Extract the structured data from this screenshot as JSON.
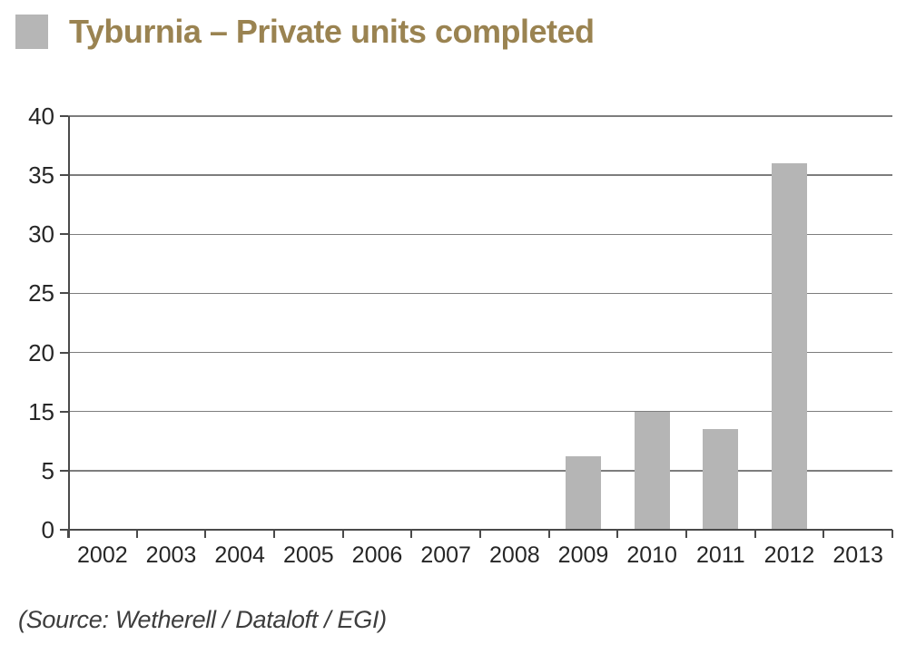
{
  "title": {
    "text": "Tyburnia – Private units completed",
    "color": "#9a8351"
  },
  "legend": {
    "swatch_color": "#b6b6b6",
    "position": "top-left"
  },
  "source_note": "(Source: Wetherell / Dataloft / EGI)",
  "chart_data": {
    "type": "bar",
    "title": "Tyburnia – Private units completed",
    "categories": [
      "2002",
      "2003",
      "2004",
      "2005",
      "2006",
      "2007",
      "2008",
      "2009",
      "2010",
      "2011",
      "2012",
      "2013"
    ],
    "values": [
      0,
      0,
      0,
      0,
      0,
      0,
      0,
      7.5,
      15,
      12,
      36,
      0
    ],
    "xlabel": "",
    "ylabel": "",
    "ylim": [
      0,
      40
    ],
    "yticks_bottom_to_top": [
      0,
      5,
      15,
      20,
      25,
      30,
      35,
      40
    ],
    "bar_color": "#b5b5b5",
    "grid": "horizontal",
    "gridline_color": "#7d7d7d",
    "axis_color": "#4a4a4a",
    "tick_label_color": "#262626",
    "legend_position": "top-left"
  }
}
